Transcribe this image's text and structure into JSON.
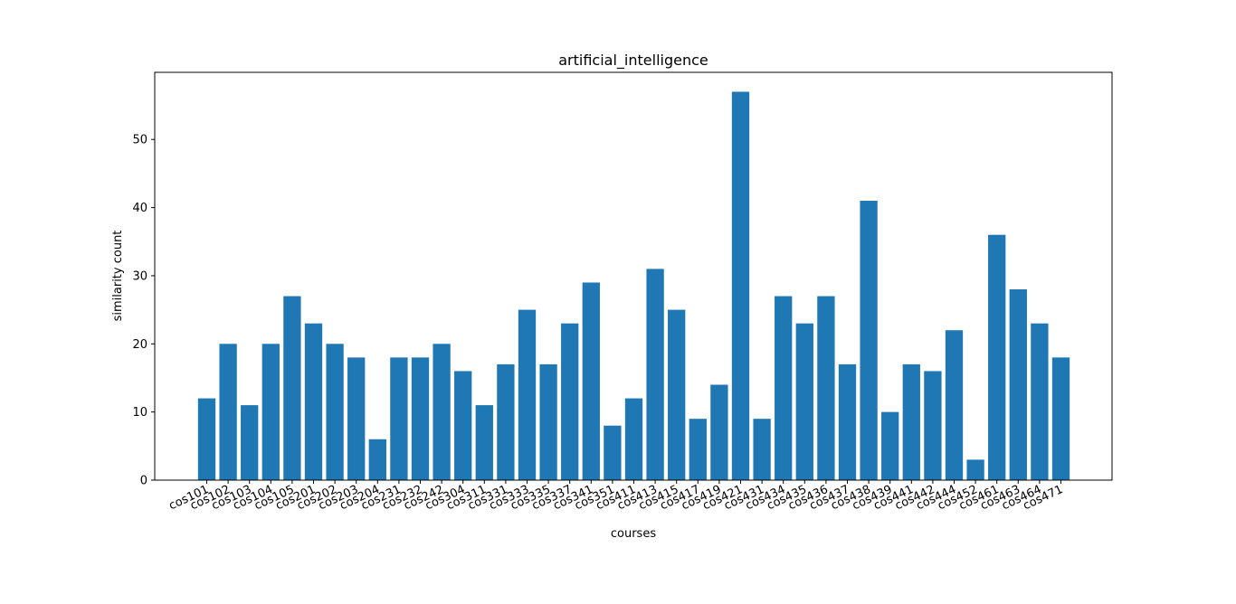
{
  "chart_data": {
    "type": "bar",
    "title": "artificial_intelligence",
    "xlabel": "courses",
    "ylabel": "similarity count",
    "ylim": [
      0,
      59.85
    ],
    "yticks": [
      0,
      10,
      20,
      30,
      40,
      50
    ],
    "grid": false,
    "legend": "none",
    "colors": {
      "bar": "#1f77b4",
      "axis": "#000000",
      "background": "#ffffff"
    },
    "categories": [
      "cos101",
      "cos102",
      "cos103",
      "cos104",
      "cos105",
      "cos201",
      "cos202",
      "cos203",
      "cos204",
      "cos231",
      "cos232",
      "cos242",
      "cos304",
      "cos311",
      "cos331",
      "cos333",
      "cos335",
      "cos337",
      "cos341",
      "cos351",
      "cos411",
      "cos413",
      "cos415",
      "cos417",
      "cos419",
      "cos421",
      "cos431",
      "cos434",
      "cos435",
      "cos436",
      "cos437",
      "cos438",
      "cos439",
      "cos441",
      "cos442",
      "cos444",
      "cos452",
      "cos461",
      "cos463",
      "cos464",
      "cos471"
    ],
    "values": [
      12,
      20,
      11,
      20,
      27,
      23,
      20,
      18,
      6,
      18,
      18,
      20,
      16,
      11,
      17,
      25,
      17,
      23,
      29,
      8,
      12,
      31,
      25,
      9,
      14,
      57,
      9,
      27,
      23,
      27,
      17,
      41,
      10,
      17,
      16,
      22,
      3,
      36,
      28,
      23,
      18
    ]
  }
}
